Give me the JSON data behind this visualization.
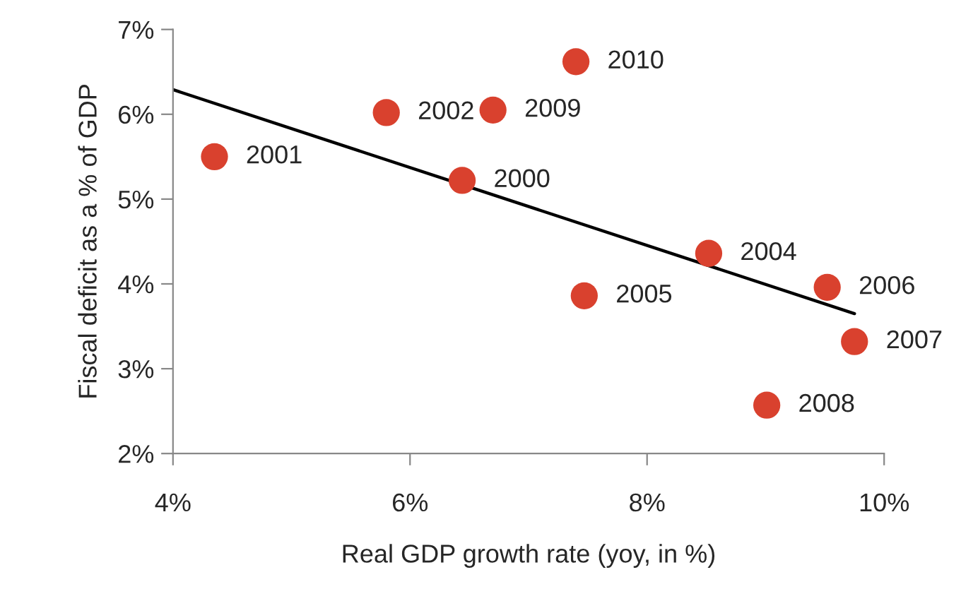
{
  "chart_data": {
    "type": "scatter",
    "xlabel": "Real GDP growth rate (yoy, in %)",
    "ylabel": "Fiscal deficit as a % of GDP",
    "xlim": [
      4,
      10
    ],
    "ylim": [
      2,
      7
    ],
    "xticks": [
      {
        "value": 4,
        "label": "4%"
      },
      {
        "value": 6,
        "label": "6%"
      },
      {
        "value": 8,
        "label": "8%"
      },
      {
        "value": 10,
        "label": "10%"
      }
    ],
    "yticks": [
      {
        "value": 2,
        "label": "2%"
      },
      {
        "value": 3,
        "label": "3%"
      },
      {
        "value": 4,
        "label": "4%"
      },
      {
        "value": 5,
        "label": "5%"
      },
      {
        "value": 6,
        "label": "6%"
      },
      {
        "value": 7,
        "label": "7%"
      }
    ],
    "grid": false,
    "legend": false,
    "series": [
      {
        "marker": "circle",
        "color": "#d9412e",
        "x": [
          6.44,
          4.35,
          5.8,
          8.52,
          7.47,
          9.52,
          9.75,
          9.01,
          6.7,
          7.4
        ],
        "values": [
          5.22,
          5.5,
          6.02,
          4.36,
          3.86,
          3.96,
          3.32,
          2.57,
          6.05,
          6.62
        ]
      },
      {
        "type": "line",
        "color": "#000000",
        "x": [
          4.0,
          9.75
        ],
        "values": [
          6.29,
          3.65
        ],
        "marker": "none",
        "line_style": "solid"
      }
    ],
    "annotations": [
      {
        "text": "2000",
        "x": 6.44,
        "y": 5.22
      },
      {
        "text": "2001",
        "x": 4.35,
        "y": 5.5
      },
      {
        "text": "2002",
        "x": 5.8,
        "y": 6.02
      },
      {
        "text": "2004",
        "x": 8.52,
        "y": 4.36
      },
      {
        "text": "2005",
        "x": 7.47,
        "y": 3.86
      },
      {
        "text": "2006",
        "x": 9.52,
        "y": 3.96
      },
      {
        "text": "2007",
        "x": 9.75,
        "y": 3.32
      },
      {
        "text": "2008",
        "x": 9.01,
        "y": 2.57
      },
      {
        "text": "2009",
        "x": 6.7,
        "y": 6.05
      },
      {
        "text": "2010",
        "x": 7.4,
        "y": 6.62
      }
    ]
  }
}
